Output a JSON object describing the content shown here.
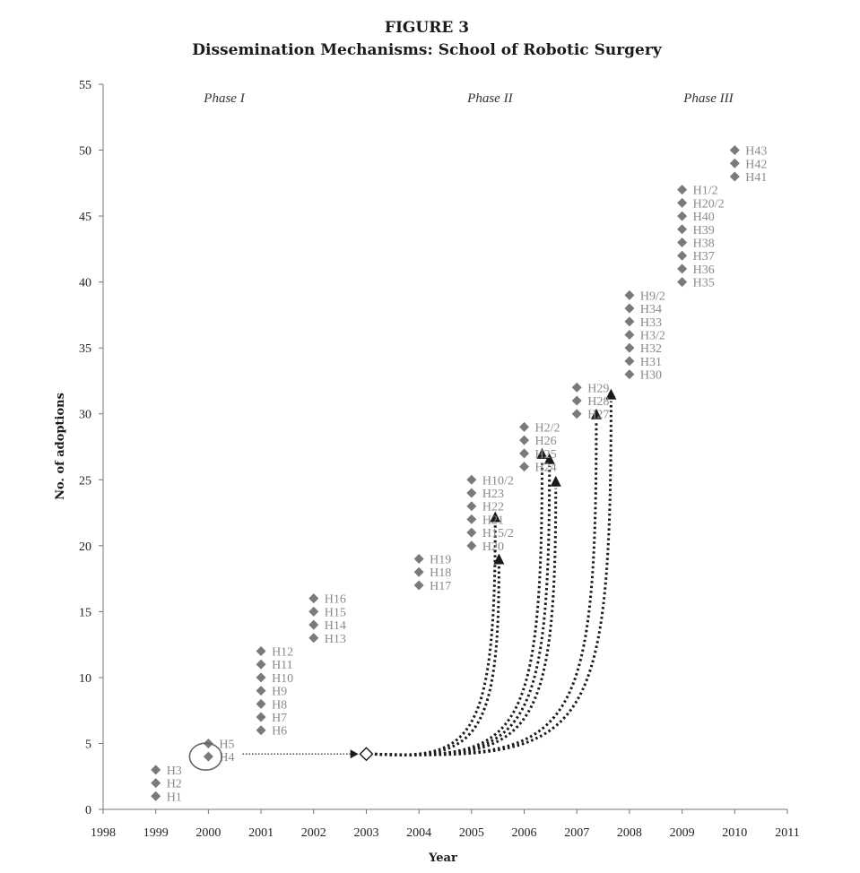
{
  "chart_data": {
    "type": "scatter",
    "figure_label": "FIGURE 3",
    "title": "Dissemination Mechanisms: School of Robotic Surgery",
    "xlabel": "Year",
    "ylabel": "No. of adoptions",
    "xlim": [
      1998,
      2011
    ],
    "ylim": [
      0,
      55
    ],
    "x_ticks": [
      "1998",
      "1999",
      "2000",
      "2001",
      "2002",
      "2003",
      "2004",
      "2005",
      "2006",
      "2007",
      "2008",
      "2009",
      "2010",
      "2011"
    ],
    "y_ticks": [
      "0",
      "5",
      "10",
      "15",
      "20",
      "25",
      "30",
      "35",
      "40",
      "45",
      "50",
      "55"
    ],
    "phases": [
      {
        "label": "Phase I",
        "x": 2000.3
      },
      {
        "label": "Phase II",
        "x": 2005.35
      },
      {
        "label": "Phase III",
        "x": 2009.5
      }
    ],
    "marker_color": "#7a7a7a",
    "label_color": "#8a8a8a",
    "points": [
      {
        "label": "H1",
        "x": 1999,
        "y": 1
      },
      {
        "label": "H2",
        "x": 1999,
        "y": 2
      },
      {
        "label": "H3",
        "x": 1999,
        "y": 3
      },
      {
        "label": "H4",
        "x": 2000,
        "y": 4
      },
      {
        "label": "H5",
        "x": 2000,
        "y": 5
      },
      {
        "label": "H6",
        "x": 2001,
        "y": 6
      },
      {
        "label": "H7",
        "x": 2001,
        "y": 7
      },
      {
        "label": "H8",
        "x": 2001,
        "y": 8
      },
      {
        "label": "H9",
        "x": 2001,
        "y": 9
      },
      {
        "label": "H10",
        "x": 2001,
        "y": 10
      },
      {
        "label": "H11",
        "x": 2001,
        "y": 11
      },
      {
        "label": "H12",
        "x": 2001,
        "y": 12
      },
      {
        "label": "H13",
        "x": 2002,
        "y": 13
      },
      {
        "label": "H14",
        "x": 2002,
        "y": 14
      },
      {
        "label": "H15",
        "x": 2002,
        "y": 15
      },
      {
        "label": "H16",
        "x": 2002,
        "y": 16
      },
      {
        "label": "H17",
        "x": 2004,
        "y": 17
      },
      {
        "label": "H18",
        "x": 2004,
        "y": 18
      },
      {
        "label": "H19",
        "x": 2004,
        "y": 19
      },
      {
        "label": "H20",
        "x": 2005,
        "y": 20
      },
      {
        "label": "H15/2",
        "x": 2005,
        "y": 21
      },
      {
        "label": "H21",
        "x": 2005,
        "y": 22
      },
      {
        "label": "H22",
        "x": 2005,
        "y": 23
      },
      {
        "label": "H23",
        "x": 2005,
        "y": 24
      },
      {
        "label": "H10/2",
        "x": 2005,
        "y": 25
      },
      {
        "label": "H24",
        "x": 2006,
        "y": 26
      },
      {
        "label": "H25",
        "x": 2006,
        "y": 27
      },
      {
        "label": "H26",
        "x": 2006,
        "y": 28
      },
      {
        "label": "H2/2",
        "x": 2006,
        "y": 29
      },
      {
        "label": "H27",
        "x": 2007,
        "y": 30
      },
      {
        "label": "H28",
        "x": 2007,
        "y": 31
      },
      {
        "label": "H29",
        "x": 2007,
        "y": 32
      },
      {
        "label": "H30",
        "x": 2008,
        "y": 33
      },
      {
        "label": "H31",
        "x": 2008,
        "y": 34
      },
      {
        "label": "H32",
        "x": 2008,
        "y": 35
      },
      {
        "label": "H3/2",
        "x": 2008,
        "y": 36
      },
      {
        "label": "H33",
        "x": 2008,
        "y": 37
      },
      {
        "label": "H34",
        "x": 2008,
        "y": 38
      },
      {
        "label": "H9/2",
        "x": 2008,
        "y": 39
      },
      {
        "label": "H35",
        "x": 2009,
        "y": 40
      },
      {
        "label": "H36",
        "x": 2009,
        "y": 41
      },
      {
        "label": "H37",
        "x": 2009,
        "y": 42
      },
      {
        "label": "H38",
        "x": 2009,
        "y": 43
      },
      {
        "label": "H39",
        "x": 2009,
        "y": 44
      },
      {
        "label": "H40",
        "x": 2009,
        "y": 45
      },
      {
        "label": "H20/2",
        "x": 2009,
        "y": 46
      },
      {
        "label": "H1/2",
        "x": 2009,
        "y": 47
      },
      {
        "label": "H41",
        "x": 2010,
        "y": 48
      },
      {
        "label": "H42",
        "x": 2010,
        "y": 49
      },
      {
        "label": "H43",
        "x": 2010,
        "y": 50
      }
    ],
    "highlight": {
      "x": 2000,
      "y": 4,
      "shape": "circle"
    },
    "hub": {
      "x": 2003,
      "y": 4.2,
      "marker": "open-diamond"
    },
    "link": {
      "from": {
        "x": 2000.65,
        "y": 4.2
      },
      "to": {
        "x": 2002.85,
        "y": 4.2
      },
      "style": "dotted-arrow"
    },
    "dissemination_arrows": [
      {
        "tip": [
          2005.45,
          22.2
        ]
      },
      {
        "tip": [
          2005.52,
          19.0
        ]
      },
      {
        "tip": [
          2006.34,
          27.0
        ]
      },
      {
        "tip": [
          2006.48,
          26.6
        ]
      },
      {
        "tip": [
          2006.6,
          24.9
        ]
      },
      {
        "tip": [
          2007.37,
          30.0
        ]
      },
      {
        "tip": [
          2007.65,
          31.5
        ]
      }
    ]
  }
}
